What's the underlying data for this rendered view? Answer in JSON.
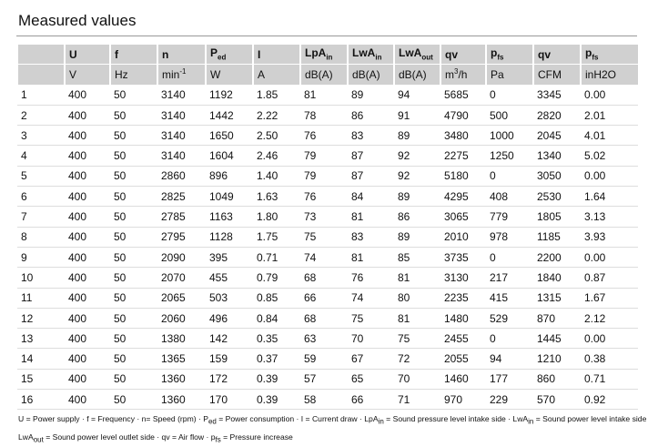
{
  "title": "Measured values",
  "table": {
    "header": [
      {
        "main": "U"
      },
      {
        "main": "f"
      },
      {
        "main": "n"
      },
      {
        "main": "P",
        "sub": "ed"
      },
      {
        "main": "I"
      },
      {
        "main": "LpA",
        "sub": "in"
      },
      {
        "main": "LwA",
        "sub": "in"
      },
      {
        "main": "LwA",
        "sub": "out"
      },
      {
        "main": "qv"
      },
      {
        "main": "p",
        "sub": "fs"
      },
      {
        "main": "qv"
      },
      {
        "main": "p",
        "sub": "fs"
      }
    ],
    "units": [
      {
        "main": "V"
      },
      {
        "main": "Hz"
      },
      {
        "main": "min",
        "sup": "-1"
      },
      {
        "main": "W"
      },
      {
        "main": "A"
      },
      {
        "main": "dB(A)"
      },
      {
        "main": "dB(A)"
      },
      {
        "main": "dB(A)"
      },
      {
        "main": "m",
        "sup": "3",
        "rest": "/h"
      },
      {
        "main": "Pa"
      },
      {
        "main": "CFM"
      },
      {
        "main": "inH2O"
      }
    ],
    "rows": [
      [
        "1",
        "400",
        "50",
        "3140",
        "1192",
        "1.85",
        "81",
        "89",
        "94",
        "5685",
        "0",
        "3345",
        "0.00"
      ],
      [
        "2",
        "400",
        "50",
        "3140",
        "1442",
        "2.22",
        "78",
        "86",
        "91",
        "4790",
        "500",
        "2820",
        "2.01"
      ],
      [
        "3",
        "400",
        "50",
        "3140",
        "1650",
        "2.50",
        "76",
        "83",
        "89",
        "3480",
        "1000",
        "2045",
        "4.01"
      ],
      [
        "4",
        "400",
        "50",
        "3140",
        "1604",
        "2.46",
        "79",
        "87",
        "92",
        "2275",
        "1250",
        "1340",
        "5.02"
      ],
      [
        "5",
        "400",
        "50",
        "2860",
        "896",
        "1.40",
        "79",
        "87",
        "92",
        "5180",
        "0",
        "3050",
        "0.00"
      ],
      [
        "6",
        "400",
        "50",
        "2825",
        "1049",
        "1.63",
        "76",
        "84",
        "89",
        "4295",
        "408",
        "2530",
        "1.64"
      ],
      [
        "7",
        "400",
        "50",
        "2785",
        "1163",
        "1.80",
        "73",
        "81",
        "86",
        "3065",
        "779",
        "1805",
        "3.13"
      ],
      [
        "8",
        "400",
        "50",
        "2795",
        "1128",
        "1.75",
        "75",
        "83",
        "89",
        "2010",
        "978",
        "1185",
        "3.93"
      ],
      [
        "9",
        "400",
        "50",
        "2090",
        "395",
        "0.71",
        "74",
        "81",
        "85",
        "3735",
        "0",
        "2200",
        "0.00"
      ],
      [
        "10",
        "400",
        "50",
        "2070",
        "455",
        "0.79",
        "68",
        "76",
        "81",
        "3130",
        "217",
        "1840",
        "0.87"
      ],
      [
        "11",
        "400",
        "50",
        "2065",
        "503",
        "0.85",
        "66",
        "74",
        "80",
        "2235",
        "415",
        "1315",
        "1.67"
      ],
      [
        "12",
        "400",
        "50",
        "2060",
        "496",
        "0.84",
        "68",
        "75",
        "81",
        "1480",
        "529",
        "870",
        "2.12"
      ],
      [
        "13",
        "400",
        "50",
        "1380",
        "142",
        "0.35",
        "63",
        "70",
        "75",
        "2455",
        "0",
        "1445",
        "0.00"
      ],
      [
        "14",
        "400",
        "50",
        "1365",
        "159",
        "0.37",
        "59",
        "67",
        "72",
        "2055",
        "94",
        "1210",
        "0.38"
      ],
      [
        "15",
        "400",
        "50",
        "1360",
        "172",
        "0.39",
        "57",
        "65",
        "70",
        "1460",
        "177",
        "860",
        "0.71"
      ],
      [
        "16",
        "400",
        "50",
        "1360",
        "170",
        "0.39",
        "58",
        "66",
        "71",
        "970",
        "229",
        "570",
        "0.92"
      ]
    ]
  },
  "footnote": [
    [
      {
        "text": "U = Power supply · f = Frequency · n= Speed (rpm) · P"
      },
      {
        "sub": "ed"
      },
      {
        "text": " = Power consumption · I = Current draw · LpA"
      },
      {
        "sub": "in"
      },
      {
        "text": " = Sound pressure level intake side · LwA"
      },
      {
        "sub": "in"
      },
      {
        "text": " = Sound power level intake side"
      }
    ],
    [
      {
        "text": "LwA"
      },
      {
        "sub": "out"
      },
      {
        "text": " = Sound power level outlet side · qv = Air flow · p"
      },
      {
        "sub": "fs"
      },
      {
        "text": " = Pressure increase"
      }
    ]
  ]
}
